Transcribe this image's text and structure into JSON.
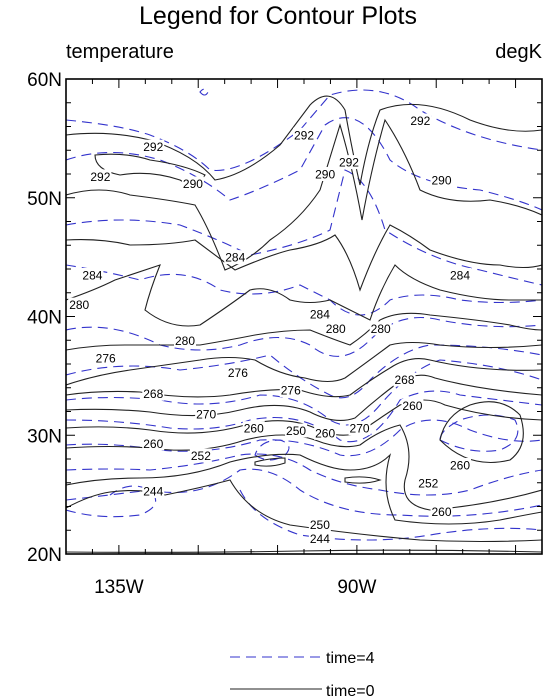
{
  "chart_data": {
    "type": "contour",
    "title": "Legend for Contour Plots",
    "left_string": "temperature",
    "right_string": "degK",
    "x_ticks": [
      {
        "value": -135,
        "label": "135W"
      },
      {
        "value": -90,
        "label": "90W"
      }
    ],
    "y_ticks": [
      {
        "value": 20,
        "label": "20N"
      },
      {
        "value": 30,
        "label": "30N"
      },
      {
        "value": 40,
        "label": "40N"
      },
      {
        "value": 50,
        "label": "50N"
      },
      {
        "value": 60,
        "label": "60N"
      }
    ],
    "xlim": [
      -145,
      -55
    ],
    "ylim": [
      20,
      60
    ],
    "series": [
      {
        "name": "time=4",
        "color": "#3333cc",
        "style": "dashed"
      },
      {
        "name": "time=0",
        "color": "#000000",
        "style": "solid"
      }
    ],
    "contour_labels": [
      {
        "text": "292",
        "lon": -138.5,
        "lat": 51.8,
        "series": "time=0"
      },
      {
        "text": "292",
        "lon": -128.5,
        "lat": 54.3,
        "series": "time=0"
      },
      {
        "text": "290",
        "lon": -121.0,
        "lat": 51.2,
        "series": "time=0"
      },
      {
        "text": "292",
        "lon": -100.0,
        "lat": 55.3,
        "series": "time=0"
      },
      {
        "text": "290",
        "lon": -96.0,
        "lat": 52.0,
        "series": "time=0"
      },
      {
        "text": "292",
        "lon": -91.5,
        "lat": 53.0,
        "series": "time=0"
      },
      {
        "text": "292",
        "lon": -78.0,
        "lat": 56.5,
        "series": "time=0"
      },
      {
        "text": "290",
        "lon": -74.0,
        "lat": 51.5,
        "series": "time=0"
      },
      {
        "text": "284",
        "lon": -113.0,
        "lat": 45.0,
        "series": "time=0"
      },
      {
        "text": "284",
        "lon": -140.0,
        "lat": 43.5,
        "series": "time=0"
      },
      {
        "text": "280",
        "lon": -142.5,
        "lat": 41.0,
        "series": "time=0"
      },
      {
        "text": "284",
        "lon": -97.0,
        "lat": 40.2,
        "series": "time=0"
      },
      {
        "text": "284",
        "lon": -70.5,
        "lat": 43.5,
        "series": "time=0"
      },
      {
        "text": "280",
        "lon": -94.0,
        "lat": 39.0,
        "series": "time=0"
      },
      {
        "text": "280",
        "lon": -85.5,
        "lat": 39.0,
        "series": "time=0"
      },
      {
        "text": "280",
        "lon": -122.5,
        "lat": 38.0,
        "series": "time=0"
      },
      {
        "text": "276",
        "lon": -137.5,
        "lat": 36.5,
        "series": "time=0"
      },
      {
        "text": "276",
        "lon": -112.5,
        "lat": 35.3,
        "series": "time=0"
      },
      {
        "text": "276",
        "lon": -102.5,
        "lat": 33.8,
        "series": "time=0"
      },
      {
        "text": "268",
        "lon": -81.0,
        "lat": 34.7,
        "series": "time=0"
      },
      {
        "text": "268",
        "lon": -128.5,
        "lat": 33.5,
        "series": "time=0"
      },
      {
        "text": "260",
        "lon": -79.5,
        "lat": 32.5,
        "series": "time=0"
      },
      {
        "text": "270",
        "lon": -118.5,
        "lat": 31.8,
        "series": "time=0"
      },
      {
        "text": "260",
        "lon": -109.5,
        "lat": 30.6,
        "series": "time=0"
      },
      {
        "text": "250",
        "lon": -101.5,
        "lat": 30.4,
        "series": "time=0"
      },
      {
        "text": "260",
        "lon": -96.0,
        "lat": 30.2,
        "series": "time=0"
      },
      {
        "text": "270",
        "lon": -89.5,
        "lat": 30.6,
        "series": "time=0"
      },
      {
        "text": "260",
        "lon": -128.5,
        "lat": 29.3,
        "series": "time=0"
      },
      {
        "text": "252",
        "lon": -119.5,
        "lat": 28.3,
        "series": "time=0"
      },
      {
        "text": "260",
        "lon": -70.5,
        "lat": 27.5,
        "series": "time=0"
      },
      {
        "text": "252",
        "lon": -76.5,
        "lat": 26.0,
        "series": "time=0"
      },
      {
        "text": "260",
        "lon": -74.0,
        "lat": 23.6,
        "series": "time=0"
      },
      {
        "text": "244",
        "lon": -128.5,
        "lat": 25.3,
        "series": "time=0"
      },
      {
        "text": "250",
        "lon": -97.0,
        "lat": 22.5,
        "series": "time=0"
      },
      {
        "text": "244",
        "lon": -97.0,
        "lat": 21.3,
        "series": "time=0"
      }
    ]
  }
}
